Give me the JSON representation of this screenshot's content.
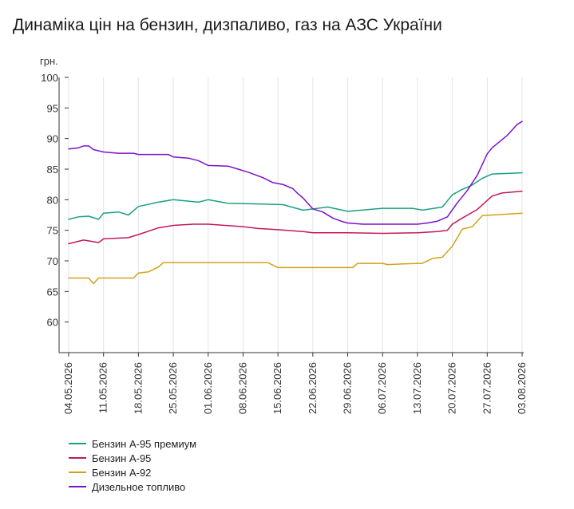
{
  "chart_data": {
    "type": "line",
    "title": "Динаміка цін на бензин, дизпаливо, газ на АЗС України",
    "ylabel": "грн.",
    "xlabel": "",
    "ylim": [
      55,
      100
    ],
    "y_ticks": [
      60,
      65,
      70,
      75,
      80,
      85,
      90,
      95,
      100
    ],
    "x_tick_labels": [
      "04.05.2026",
      "11.05.2026",
      "18.05.2026",
      "25.05.2026",
      "01.06.2026",
      "08.06.2026",
      "15.06.2026",
      "22.06.2026",
      "29.06.2026",
      "06.07.2026",
      "13.07.2026",
      "20.07.2026",
      "27.07.2026",
      "03.08.2026"
    ],
    "grid": "vertical",
    "legend_position": "bottom-left",
    "series": [
      {
        "name": "Бензин А-95 премиум",
        "color": "#1aa083",
        "x": [
          "04.05.2026",
          "06.05.2026",
          "08.05.2026",
          "10.05.2026",
          "11.05.2026",
          "14.05.2026",
          "16.05.2026",
          "18.05.2026",
          "22.05.2026",
          "25.05.2026",
          "30.05.2026",
          "01.06.2026",
          "05.06.2026",
          "12.06.2026",
          "16.06.2026",
          "20.06.2026",
          "25.06.2026",
          "29.06.2026",
          "06.07.2026",
          "12.07.2026",
          "14.07.2026",
          "18.07.2026",
          "20.07.2026",
          "22.07.2026",
          "24.07.2026",
          "26.07.2026",
          "28.07.2026",
          "03.08.2026"
        ],
        "y": [
          76.8,
          77.2,
          77.3,
          76.8,
          77.8,
          78.0,
          77.5,
          78.9,
          79.6,
          80.0,
          79.6,
          80.0,
          79.4,
          79.3,
          79.2,
          78.3,
          78.8,
          78.1,
          78.6,
          78.6,
          78.3,
          78.8,
          80.8,
          81.7,
          82.4,
          83.5,
          84.2,
          84.4
        ]
      },
      {
        "name": "Бензин А-95",
        "color": "#c2185b",
        "x": [
          "04.05.2026",
          "07.05.2026",
          "10.05.2026",
          "11.05.2026",
          "16.05.2026",
          "18.05.2026",
          "22.05.2026",
          "25.05.2026",
          "29.05.2026",
          "01.06.2026",
          "08.06.2026",
          "11.06.2026",
          "15.06.2026",
          "20.06.2026",
          "22.06.2026",
          "29.06.2026",
          "06.07.2026",
          "13.07.2026",
          "17.07.2026",
          "19.07.2026",
          "20.07.2026",
          "22.07.2026",
          "25.07.2026",
          "28.07.2026",
          "30.07.2026",
          "03.08.2026"
        ],
        "y": [
          72.8,
          73.4,
          73.0,
          73.6,
          73.8,
          74.3,
          75.4,
          75.8,
          76.0,
          76.0,
          75.6,
          75.3,
          75.1,
          74.8,
          74.6,
          74.6,
          74.5,
          74.6,
          74.8,
          75.0,
          76.0,
          77.0,
          78.4,
          80.6,
          81.1,
          81.4
        ]
      },
      {
        "name": "Бензин А-92",
        "color": "#d0a21a",
        "x": [
          "04.05.2026",
          "08.05.2026",
          "09.05.2026",
          "10.05.2026",
          "17.05.2026",
          "18.05.2026",
          "20.05.2026",
          "22.05.2026",
          "23.05.2026",
          "01.06.2026",
          "13.06.2026",
          "15.06.2026",
          "29.06.2026",
          "30.06.2026",
          "01.07.2026",
          "06.07.2026",
          "07.07.2026",
          "13.07.2026",
          "14.07.2026",
          "16.07.2026",
          "18.07.2026",
          "20.07.2026",
          "22.07.2026",
          "24.07.2026",
          "26.07.2026",
          "03.08.2026"
        ],
        "y": [
          67.2,
          67.2,
          66.3,
          67.2,
          67.2,
          68.0,
          68.2,
          69.0,
          69.7,
          69.7,
          69.7,
          68.9,
          68.9,
          68.9,
          69.6,
          69.6,
          69.4,
          69.6,
          69.6,
          70.4,
          70.6,
          72.4,
          75.2,
          75.6,
          77.4,
          77.8
        ]
      },
      {
        "name": "Дизельное топливо",
        "color": "#7b12c9",
        "x": [
          "04.05.2026",
          "06.05.2026",
          "07.05.2026",
          "08.05.2026",
          "09.05.2026",
          "11.05.2026",
          "14.05.2026",
          "17.05.2026",
          "18.05.2026",
          "24.05.2026",
          "25.05.2026",
          "28.05.2026",
          "30.05.2026",
          "01.06.2026",
          "05.06.2026",
          "07.06.2026",
          "09.06.2026",
          "12.06.2026",
          "14.06.2026",
          "16.06.2026",
          "18.06.2026",
          "19.06.2026",
          "20.06.2026",
          "22.06.2026",
          "24.06.2026",
          "26.06.2026",
          "28.06.2026",
          "29.06.2026",
          "02.07.2026",
          "13.07.2026",
          "15.07.2026",
          "17.07.2026",
          "19.07.2026",
          "21.07.2026",
          "23.07.2026",
          "25.07.2026",
          "27.07.2026",
          "28.07.2026",
          "31.07.2026",
          "02.08.2026",
          "03.08.2026"
        ],
        "y": [
          88.3,
          88.5,
          88.8,
          88.8,
          88.2,
          87.8,
          87.6,
          87.6,
          87.4,
          87.4,
          87.0,
          86.8,
          86.4,
          85.6,
          85.5,
          85.0,
          84.5,
          83.6,
          82.8,
          82.5,
          81.8,
          81.0,
          80.3,
          78.5,
          78.0,
          77.0,
          76.4,
          76.2,
          76.0,
          76.0,
          76.2,
          76.5,
          77.2,
          79.5,
          81.5,
          84.0,
          87.5,
          88.5,
          90.5,
          92.3,
          92.8
        ]
      }
    ]
  }
}
